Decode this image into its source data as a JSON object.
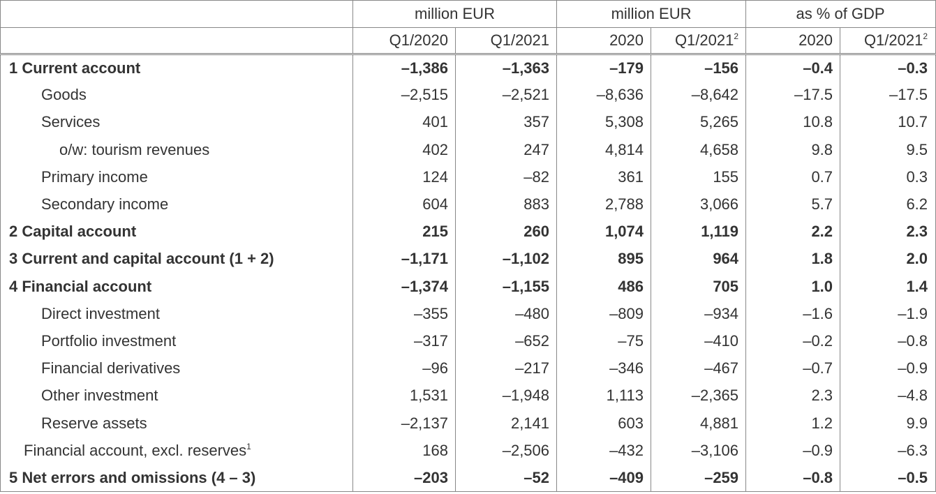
{
  "table": {
    "groups": [
      "million EUR",
      "million EUR",
      "as % of GDP"
    ],
    "columns": [
      {
        "text": "Q1/2020"
      },
      {
        "text": "Q1/2021"
      },
      {
        "text": "2020"
      },
      {
        "text": "Q1/2021",
        "note": "2"
      },
      {
        "text": "2020"
      },
      {
        "text": "Q1/2021",
        "note": "2"
      }
    ],
    "rows": [
      {
        "label": "1 Current account",
        "values": [
          "–1,386",
          "–1,363",
          "–179",
          "–156",
          "–0.4",
          "–0.3"
        ]
      },
      {
        "label": "Goods",
        "values": [
          "–2,515",
          "–2,521",
          "–8,636",
          "–8,642",
          "–17.5",
          "–17.5"
        ]
      },
      {
        "label": "Services",
        "values": [
          "401",
          "357",
          "5,308",
          "5,265",
          "10.8",
          "10.7"
        ]
      },
      {
        "label": "o/w: tourism revenues",
        "values": [
          "402",
          "247",
          "4,814",
          "4,658",
          "9.8",
          "9.5"
        ]
      },
      {
        "label": "Primary income",
        "values": [
          "124",
          "–82",
          "361",
          "155",
          "0.7",
          "0.3"
        ]
      },
      {
        "label": "Secondary income",
        "values": [
          "604",
          "883",
          "2,788",
          "3,066",
          "5.7",
          "6.2"
        ]
      },
      {
        "label": "2 Capital account",
        "values": [
          "215",
          "260",
          "1,074",
          "1,119",
          "2.2",
          "2.3"
        ]
      },
      {
        "label": "3 Current and capital account (1 + 2)",
        "values": [
          "–1,171",
          "–1,102",
          "895",
          "964",
          "1.8",
          "2.0"
        ]
      },
      {
        "label": "4 Financial account",
        "values": [
          "–1,374",
          "–1,155",
          "486",
          "705",
          "1.0",
          "1.4"
        ]
      },
      {
        "label": "Direct investment",
        "values": [
          "–355",
          "–480",
          "–809",
          "–934",
          "–1.6",
          "–1.9"
        ]
      },
      {
        "label": "Portfolio investment",
        "values": [
          "–317",
          "–652",
          "–75",
          "–410",
          "–0.2",
          "–0.8"
        ]
      },
      {
        "label": "Financial derivatives",
        "values": [
          "–96",
          "–217",
          "–346",
          "–467",
          "–0.7",
          "–0.9"
        ]
      },
      {
        "label": "Other investment",
        "values": [
          "1,531",
          "–1,948",
          "1,113",
          "–2,365",
          "2.3",
          "–4.8"
        ]
      },
      {
        "label": "Reserve assets",
        "values": [
          "–2,137",
          "2,141",
          "603",
          "4,881",
          "1.2",
          "9.9"
        ]
      },
      {
        "label": "Financial account, excl. reserves",
        "note": "1",
        "values": [
          "168",
          "–2,506",
          "–432",
          "–3,106",
          "–0.9",
          "–6.3"
        ]
      },
      {
        "label": "5 Net errors and omissions (4 – 3)",
        "values": [
          "–203",
          "–52",
          "–409",
          "–259",
          "–0.8",
          "–0.5"
        ]
      }
    ]
  }
}
